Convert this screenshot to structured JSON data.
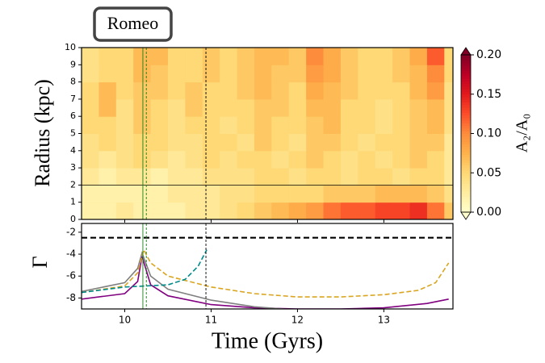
{
  "chart_data": [
    {
      "type": "heatmap",
      "title": "Romeo",
      "ylabel": "Radius (kpc)",
      "colorbar_label": "A₂/A₀",
      "x": [
        9.6,
        9.8,
        10.0,
        10.2,
        10.4,
        10.6,
        10.8,
        11.0,
        11.2,
        11.4,
        11.6,
        11.8,
        12.0,
        12.2,
        12.4,
        12.6,
        12.8,
        13.0,
        13.2,
        13.4,
        13.6,
        13.8
      ],
      "y": [
        0.5,
        1.5,
        2.5,
        3.5,
        4.5,
        5.5,
        6.5,
        7.5,
        8.5,
        9.5
      ],
      "z": [
        [
          0.02,
          0.02,
          0.03,
          0.02,
          0.02,
          0.02,
          0.03,
          0.03,
          0.04,
          0.05,
          0.06,
          0.07,
          0.08,
          0.09,
          0.11,
          0.12,
          0.12,
          0.13,
          0.13,
          0.14,
          0.11,
          0.06
        ],
        [
          0.02,
          0.02,
          0.02,
          0.02,
          0.02,
          0.03,
          0.03,
          0.03,
          0.04,
          0.04,
          0.05,
          0.05,
          0.05,
          0.05,
          0.06,
          0.06,
          0.06,
          0.07,
          0.07,
          0.07,
          0.06,
          0.04
        ],
        [
          0.03,
          0.02,
          0.03,
          0.03,
          0.02,
          0.03,
          0.03,
          0.04,
          0.04,
          0.04,
          0.05,
          0.05,
          0.04,
          0.05,
          0.05,
          0.04,
          0.05,
          0.05,
          0.04,
          0.05,
          0.05,
          0.03
        ],
        [
          0.04,
          0.03,
          0.04,
          0.05,
          0.04,
          0.03,
          0.04,
          0.05,
          0.04,
          0.05,
          0.05,
          0.04,
          0.05,
          0.06,
          0.05,
          0.04,
          0.05,
          0.04,
          0.05,
          0.06,
          0.05,
          0.03
        ],
        [
          0.04,
          0.05,
          0.04,
          0.05,
          0.05,
          0.04,
          0.04,
          0.05,
          0.05,
          0.04,
          0.06,
          0.05,
          0.04,
          0.06,
          0.06,
          0.05,
          0.04,
          0.05,
          0.05,
          0.06,
          0.06,
          0.03
        ],
        [
          0.05,
          0.05,
          0.04,
          0.06,
          0.05,
          0.04,
          0.05,
          0.05,
          0.04,
          0.05,
          0.06,
          0.05,
          0.05,
          0.06,
          0.07,
          0.05,
          0.05,
          0.04,
          0.05,
          0.06,
          0.07,
          0.04
        ],
        [
          0.05,
          0.07,
          0.04,
          0.06,
          0.05,
          0.04,
          0.06,
          0.05,
          0.05,
          0.05,
          0.06,
          0.06,
          0.05,
          0.07,
          0.07,
          0.05,
          0.05,
          0.04,
          0.05,
          0.06,
          0.07,
          0.04
        ],
        [
          0.05,
          0.07,
          0.05,
          0.06,
          0.06,
          0.05,
          0.06,
          0.05,
          0.05,
          0.06,
          0.07,
          0.06,
          0.05,
          0.08,
          0.07,
          0.06,
          0.05,
          0.05,
          0.05,
          0.07,
          0.09,
          0.04
        ],
        [
          0.04,
          0.05,
          0.05,
          0.07,
          0.06,
          0.05,
          0.05,
          0.06,
          0.05,
          0.06,
          0.07,
          0.06,
          0.06,
          0.09,
          0.08,
          0.06,
          0.05,
          0.05,
          0.06,
          0.07,
          0.1,
          0.05
        ],
        [
          0.04,
          0.05,
          0.05,
          0.07,
          0.07,
          0.05,
          0.05,
          0.06,
          0.05,
          0.06,
          0.07,
          0.07,
          0.06,
          0.1,
          0.08,
          0.06,
          0.05,
          0.05,
          0.06,
          0.08,
          0.12,
          0.05
        ]
      ],
      "xlim": [
        9.5,
        13.8
      ],
      "xticks": [
        10,
        11,
        12,
        13
      ],
      "ylim": [
        0,
        10
      ],
      "yticks": [
        0,
        1,
        2,
        3,
        4,
        5,
        6,
        7,
        8,
        9,
        10
      ],
      "zlim": [
        0,
        0.2
      ],
      "zticks": [
        {
          "value": 0,
          "label": "0.00"
        },
        {
          "value": 0.05,
          "label": "0.05"
        },
        {
          "value": 0.1,
          "label": "0.10"
        },
        {
          "value": 0.15,
          "label": "0.15"
        },
        {
          "value": 0.2,
          "label": "0.20"
        }
      ],
      "colorscale": [
        "#ffffcc",
        "#ffeda0",
        "#fed976",
        "#feb24c",
        "#fd8d3c",
        "#fc4e2a",
        "#e31a1c",
        "#bd0026",
        "#800026"
      ],
      "hline": 2,
      "vlines": [
        {
          "value": 10.21,
          "color": "#1a7f1a",
          "dash": false
        },
        {
          "value": 10.25,
          "color": "#1a7f1a",
          "dash": true
        },
        {
          "value": 10.94,
          "color": "#000000",
          "dash": true
        }
      ]
    },
    {
      "type": "line",
      "xlabel": "Time (Gyrs)",
      "ylabel": "Γ",
      "xlim": [
        9.5,
        13.8
      ],
      "xticks": [
        10,
        11,
        12,
        13
      ],
      "ylim": [
        -9,
        -1.2
      ],
      "yticks": [
        -2,
        -4,
        -6,
        -8
      ],
      "hline": -2.5,
      "series": [
        {
          "color": "#800080",
          "dash": false,
          "x": [
            9.5,
            10.0,
            10.15,
            10.2,
            10.3,
            10.5,
            11.0,
            11.5,
            12.0,
            12.5,
            13.0,
            13.5,
            13.75
          ],
          "values": [
            -8.1,
            -7.6,
            -6.5,
            -4.2,
            -6.8,
            -7.8,
            -8.6,
            -8.9,
            -9.0,
            -9.0,
            -8.9,
            -8.5,
            -8.1
          ]
        },
        {
          "color": "#808080",
          "dash": false,
          "x": [
            9.5,
            10.0,
            10.15,
            10.2,
            10.3,
            10.5,
            11.0,
            11.5,
            12.0
          ],
          "values": [
            -7.4,
            -6.6,
            -5.3,
            -3.9,
            -6.0,
            -7.2,
            -8.2,
            -8.8,
            -9.1
          ]
        },
        {
          "color": "#daa520",
          "dash": true,
          "x": [
            9.5,
            10.0,
            10.15,
            10.22,
            10.3,
            10.5,
            11.0,
            11.5,
            12.0,
            12.5,
            13.0,
            13.4,
            13.6,
            13.75
          ],
          "values": [
            -7.5,
            -6.9,
            -5.7,
            -3.6,
            -4.8,
            -6.0,
            -7.0,
            -7.6,
            -7.9,
            -7.9,
            -7.7,
            -7.3,
            -6.6,
            -4.8
          ]
        },
        {
          "color": "#008b8b",
          "dash": true,
          "x": [
            9.5,
            10.0,
            10.5,
            10.7,
            10.85,
            10.95
          ],
          "values": [
            -7.5,
            -7.0,
            -6.8,
            -6.3,
            -5.1,
            -3.6
          ]
        }
      ]
    }
  ]
}
